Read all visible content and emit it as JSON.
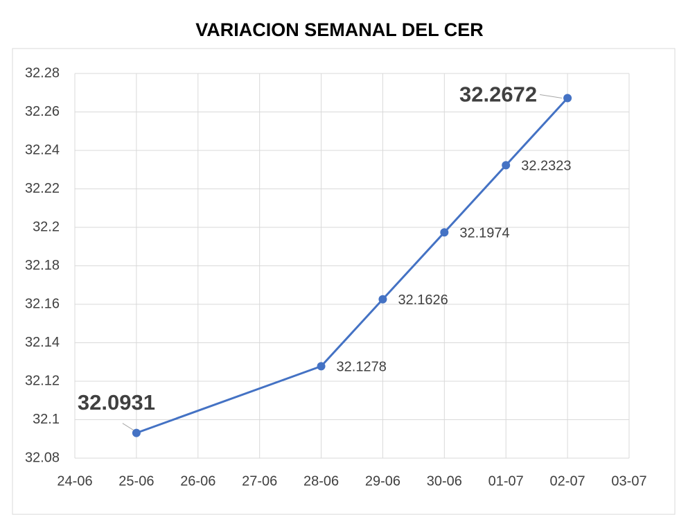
{
  "chart_data": {
    "type": "line",
    "title": "VARIACION SEMANAL DEL CER",
    "x_axis_labels": [
      "24-06",
      "25-06",
      "26-06",
      "27-06",
      "28-06",
      "29-06",
      "30-06",
      "01-07",
      "02-07",
      "03-07"
    ],
    "x": [
      "25-06",
      "28-06",
      "29-06",
      "30-06",
      "01-07",
      "02-07"
    ],
    "series": [
      {
        "name": "CER",
        "color": "#4472c4",
        "values": [
          32.0931,
          32.1278,
          32.1626,
          32.1974,
          32.2323,
          32.2672
        ]
      }
    ],
    "highlight_labels": [
      0,
      5
    ],
    "ylim": [
      32.08,
      32.28
    ],
    "yticks": [
      32.08,
      32.1,
      32.12,
      32.14,
      32.16,
      32.18,
      32.2,
      32.22,
      32.24,
      32.26,
      32.28
    ],
    "grid": true
  }
}
